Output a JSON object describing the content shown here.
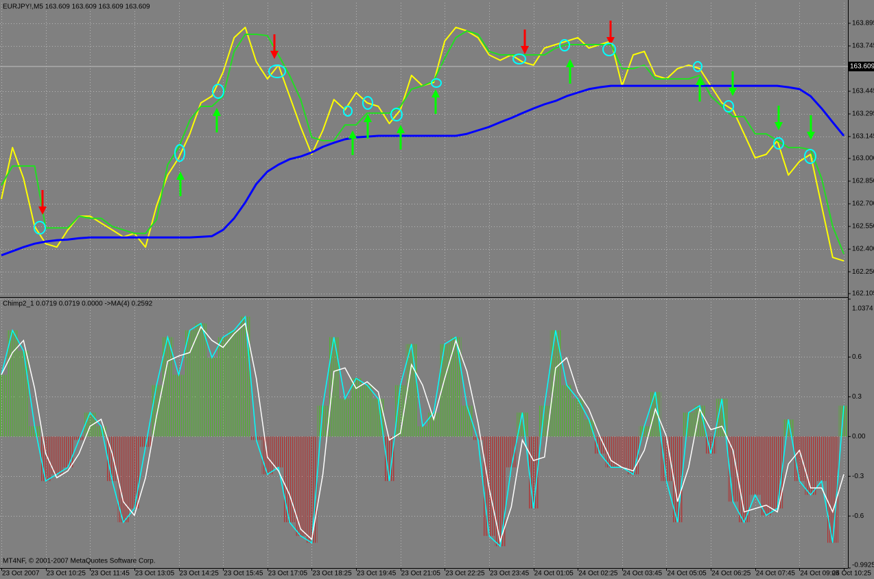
{
  "chart_data": [
    {
      "type": "line",
      "title": "EURJPY!,M5  163.609 163.609 163.609 163.609",
      "current_price": 163.609,
      "grid": true,
      "ylim": [
        162.087,
        164.031
      ],
      "yticks": [
        163.895,
        163.745,
        163.445,
        163.295,
        163.145,
        {
          "value": 163,
          "label": "163.000"
        },
        {
          "value": 162.85,
          "label": "162.850"
        },
        {
          "value": 162.7,
          "label": "162.700"
        },
        {
          "value": 162.55,
          "label": "162.550"
        },
        {
          "value": 162.4,
          "label": "162.400"
        },
        {
          "value": 162.25,
          "label": "162.250"
        },
        162.105
      ],
      "series": [
        {
          "color": "#ffff00",
          "values": [
            162.731,
            163.072,
            162.868,
            162.55,
            162.436,
            162.413,
            162.527,
            162.618,
            162.618,
            162.572,
            162.527,
            162.481,
            162.504,
            162.413,
            162.686,
            162.89,
            163.004,
            163.163,
            163.368,
            163.413,
            163.572,
            163.8,
            163.868,
            163.64,
            163.527,
            163.618,
            163.413,
            163.209,
            163.027,
            163.186,
            163.39,
            163.322,
            163.436,
            163.368,
            163.345,
            163.231,
            163.322,
            163.55,
            163.481,
            163.504,
            163.777,
            163.868,
            163.845,
            163.8,
            163.686,
            163.65,
            163.686,
            163.64,
            163.618,
            163.731,
            163.754,
            163.777,
            163.8,
            163.731,
            163.754,
            163.777,
            163.481,
            163.686,
            163.709,
            163.55,
            163.527,
            163.595,
            163.618,
            163.595,
            163.481,
            163.368,
            163.322,
            163.163,
            163.004,
            163.027,
            163.118,
            162.89,
            162.981,
            163.027,
            162.686,
            162.345,
            162.322
          ]
        },
        {
          "color": "#22dd22",
          "values": [
            162.822,
            162.95,
            162.95,
            162.95,
            162.54,
            162.54,
            162.54,
            162.618,
            162.604,
            162.604,
            162.55,
            162.527,
            162.504,
            162.504,
            162.595,
            162.959,
            163.072,
            163.254,
            163.345,
            163.345,
            163.413,
            163.709,
            163.822,
            163.822,
            163.813,
            163.686,
            163.55,
            163.39,
            163.14,
            163.118,
            163.118,
            163.222,
            163.222,
            163.3,
            163.3,
            163.3,
            163.345,
            163.459,
            163.481,
            163.513,
            163.663,
            163.8,
            163.845,
            163.822,
            163.709,
            163.686,
            163.686,
            163.686,
            163.686,
            163.686,
            163.731,
            163.754,
            163.754,
            163.754,
            163.754,
            163.754,
            163.595,
            163.595,
            163.618,
            163.527,
            163.527,
            163.527,
            163.527,
            163.55,
            163.413,
            163.345,
            163.277,
            163.277,
            163.163,
            163.163,
            163.118,
            163.072,
            163.072,
            163.059,
            162.868,
            162.55,
            162.368
          ]
        },
        {
          "color": "#0000ff",
          "values": [
            162.359,
            162.386,
            162.413,
            162.436,
            162.45,
            162.459,
            162.463,
            162.472,
            162.477,
            162.477,
            162.477,
            162.477,
            162.477,
            162.477,
            162.477,
            162.477,
            162.477,
            162.477,
            162.481,
            162.486,
            162.527,
            162.604,
            162.709,
            162.831,
            162.913,
            162.959,
            162.995,
            163.013,
            163.04,
            163.077,
            163.104,
            163.127,
            163.14,
            163.145,
            163.15,
            163.15,
            163.15,
            163.15,
            163.15,
            163.15,
            163.15,
            163.15,
            163.163,
            163.186,
            163.209,
            163.24,
            163.268,
            163.3,
            163.331,
            163.359,
            163.381,
            163.413,
            163.436,
            163.459,
            163.472,
            163.481,
            163.481,
            163.481,
            163.481,
            163.481,
            163.481,
            163.481,
            163.481,
            163.481,
            163.481,
            163.481,
            163.481,
            163.481,
            163.481,
            163.481,
            163.481,
            163.472,
            163.459,
            163.413,
            163.331,
            163.24,
            163.15
          ]
        }
      ]
    },
    {
      "type": "histogram",
      "title": "Chimp2_1 0.0719 0.0719 0.0000  ->MA(4) 0.2592",
      "footer": "MT4NF, © 2001-2007 MetaQuotes Software Corp.",
      "grid": true,
      "ylim": [
        -0.9925,
        1.0374
      ],
      "yticks": [
        1.0374,
        0.6,
        0.3,
        {
          "value": 0,
          "label": "0.00"
        },
        -0.3,
        -0.6,
        -0.9925
      ],
      "categories": [
        "23 Oct 2007",
        null,
        null,
        null,
        "23 Oct 10:25",
        null,
        null,
        null,
        "23 Oct 11:45",
        null,
        null,
        null,
        "23 Oct 13:05",
        null,
        null,
        null,
        "23 Oct 14:25",
        null,
        null,
        null,
        "23 Oct 15:45",
        null,
        null,
        null,
        "23 Oct 17:05",
        null,
        null,
        null,
        "23 Oct 18:25",
        null,
        null,
        null,
        "23 Oct 19:45",
        null,
        null,
        null,
        "23 Oct 21:05",
        null,
        null,
        null,
        "23 Oct 22:25",
        null,
        null,
        null,
        "23 Oct 23:45",
        null,
        null,
        null,
        "24 Oct 01:05",
        null,
        null,
        null,
        "24 Oct 02:25",
        null,
        null,
        null,
        "24 Oct 03:45",
        null,
        null,
        null,
        "24 Oct 05:05",
        null,
        null,
        null,
        "24 Oct 06:25",
        null,
        null,
        null,
        "24 Oct 07:45",
        null,
        null,
        null,
        "24 Oct 09:05",
        null,
        null,
        null,
        "24 Oct 10:25"
      ],
      "series": [
        {
          "color": "#55b035",
          "negative_color": "#b03535",
          "outline_color": "#00ffff",
          "values": [
            0.466,
            0.802,
            0.647,
            0.078,
            -0.336,
            -0.285,
            -0.233,
            -0.026,
            0.181,
            0.078,
            -0.336,
            -0.647,
            -0.543,
            -0.078,
            0.388,
            0.75,
            0.466,
            0.802,
            0.854,
            0.595,
            0.75,
            0.802,
            0.905,
            -0.026,
            -0.285,
            -0.233,
            -0.647,
            -0.75,
            -0.802,
            0.233,
            0.75,
            0.285,
            0.44,
            0.388,
            0.285,
            -0.336,
            0.388,
            0.698,
            0.078,
            0.181,
            0.698,
            0.75,
            0.233,
            -0.026,
            -0.75,
            -0.828,
            -0.233,
            0.181,
            -0.543,
            0.233,
            0.802,
            0.388,
            0.285,
            0.129,
            -0.129,
            -0.233,
            -0.233,
            -0.285,
            0.078,
            0.336,
            -0.336,
            -0.647,
            0.181,
            0.233,
            -0.129,
            0.285,
            -0.491,
            -0.647,
            -0.44,
            -0.595,
            -0.543,
            0.129,
            -0.336,
            -0.44,
            -0.336,
            -0.802,
            0.233
          ]
        },
        {
          "color": "#ffffff",
          "values": [
            0.466,
            0.634,
            0.725,
            0.363,
            -0.129,
            -0.311,
            -0.259,
            -0.13,
            0.078,
            0.13,
            -0.129,
            -0.492,
            -0.595,
            -0.311,
            0.155,
            0.569,
            0.608,
            0.634,
            0.828,
            0.725,
            0.673,
            0.776,
            0.854,
            0.44,
            -0.156,
            -0.259,
            -0.44,
            -0.699,
            -0.776,
            -0.285,
            0.492,
            0.518,
            0.363,
            0.414,
            0.337,
            -0.026,
            0.026,
            0.543,
            0.388,
            0.13,
            0.44,
            0.724,
            0.492,
            0.104,
            -0.388,
            -0.789,
            -0.531,
            -0.026,
            -0.181,
            -0.155,
            0.518,
            0.595,
            0.337,
            0.207,
            0.0,
            -0.181,
            -0.233,
            -0.259,
            -0.104,
            0.207,
            0.0,
            -0.492,
            -0.233,
            0.207,
            0.052,
            0.078,
            -0.103,
            -0.569,
            -0.544,
            -0.518,
            -0.569,
            -0.207,
            -0.104,
            -0.388,
            -0.388,
            -0.569,
            -0.285
          ]
        }
      ]
    }
  ]
}
